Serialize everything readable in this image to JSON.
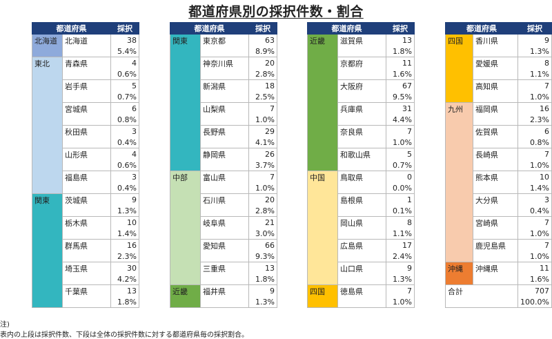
{
  "title": "都道府県別の採択件数・割合",
  "header": {
    "pref": "都道府県",
    "count": "採択"
  },
  "colors": {
    "北海道": "#8eaadb",
    "東北": "#bdd7ee",
    "関東": "#33b6bf",
    "中部": "#c5e0b4",
    "近畿": "#70ad47",
    "中国": "#ffe699",
    "四国": "#ffc000",
    "九州": "#f8cbad",
    "沖縄": "#ed7d31",
    "header": "#1f3f7a"
  },
  "columns": [
    {
      "groups": [
        {
          "region": "北海道",
          "color": "#8eaadb",
          "rows": [
            {
              "name": "北海道",
              "count": "38",
              "pct": "5.4%"
            }
          ]
        },
        {
          "region": "東北",
          "color": "#bdd7ee",
          "rows": [
            {
              "name": "青森県",
              "count": "4",
              "pct": "0.6%"
            },
            {
              "name": "岩手県",
              "count": "5",
              "pct": "0.7%"
            },
            {
              "name": "宮城県",
              "count": "6",
              "pct": "0.8%"
            },
            {
              "name": "秋田県",
              "count": "3",
              "pct": "0.4%"
            },
            {
              "name": "山形県",
              "count": "4",
              "pct": "0.6%"
            },
            {
              "name": "福島県",
              "count": "3",
              "pct": "0.4%"
            }
          ]
        },
        {
          "region": "関東",
          "color": "#33b6bf",
          "rows": [
            {
              "name": "茨城県",
              "count": "9",
              "pct": "1.3%"
            },
            {
              "name": "栃木県",
              "count": "10",
              "pct": "1.4%"
            },
            {
              "name": "群馬県",
              "count": "16",
              "pct": "2.3%"
            },
            {
              "name": "埼玉県",
              "count": "30",
              "pct": "4.2%"
            },
            {
              "name": "千葉県",
              "count": "13",
              "pct": "1.8%"
            }
          ]
        }
      ]
    },
    {
      "groups": [
        {
          "region": "関東",
          "color": "#33b6bf",
          "rows": [
            {
              "name": "東京都",
              "count": "63",
              "pct": "8.9%"
            },
            {
              "name": "神奈川県",
              "count": "20",
              "pct": "2.8%"
            },
            {
              "name": "新潟県",
              "count": "18",
              "pct": "2.5%"
            },
            {
              "name": "山梨県",
              "count": "7",
              "pct": "1.0%"
            },
            {
              "name": "長野県",
              "count": "29",
              "pct": "4.1%"
            },
            {
              "name": "静岡県",
              "count": "26",
              "pct": "3.7%"
            }
          ]
        },
        {
          "region": "中部",
          "color": "#c5e0b4",
          "rows": [
            {
              "name": "富山県",
              "count": "7",
              "pct": "1.0%"
            },
            {
              "name": "石川県",
              "count": "20",
              "pct": "2.8%"
            },
            {
              "name": "岐阜県",
              "count": "21",
              "pct": "3.0%"
            },
            {
              "name": "愛知県",
              "count": "66",
              "pct": "9.3%"
            },
            {
              "name": "三重県",
              "count": "13",
              "pct": "1.8%"
            }
          ]
        },
        {
          "region": "近畿",
          "color": "#70ad47",
          "rows": [
            {
              "name": "福井県",
              "count": "9",
              "pct": "1.3%"
            }
          ]
        }
      ]
    },
    {
      "groups": [
        {
          "region": "近畿",
          "color": "#70ad47",
          "rows": [
            {
              "name": "滋賀県",
              "count": "13",
              "pct": "1.8%"
            },
            {
              "name": "京都府",
              "count": "11",
              "pct": "1.6%"
            },
            {
              "name": "大阪府",
              "count": "67",
              "pct": "9.5%"
            },
            {
              "name": "兵庫県",
              "count": "31",
              "pct": "4.4%"
            },
            {
              "name": "奈良県",
              "count": "7",
              "pct": "1.0%"
            },
            {
              "name": "和歌山県",
              "count": "5",
              "pct": "0.7%"
            }
          ]
        },
        {
          "region": "中国",
          "color": "#ffe699",
          "rows": [
            {
              "name": "鳥取県",
              "count": "0",
              "pct": "0.0%"
            },
            {
              "name": "島根県",
              "count": "1",
              "pct": "0.1%"
            },
            {
              "name": "岡山県",
              "count": "8",
              "pct": "1.1%"
            },
            {
              "name": "広島県",
              "count": "17",
              "pct": "2.4%"
            },
            {
              "name": "山口県",
              "count": "9",
              "pct": "1.3%"
            }
          ]
        },
        {
          "region": "四国",
          "color": "#ffc000",
          "rows": [
            {
              "name": "徳島県",
              "count": "7",
              "pct": "1.0%"
            }
          ]
        }
      ]
    },
    {
      "groups": [
        {
          "region": "四国",
          "color": "#ffc000",
          "rows": [
            {
              "name": "香川県",
              "count": "9",
              "pct": "1.3%"
            },
            {
              "name": "愛媛県",
              "count": "8",
              "pct": "1.1%"
            },
            {
              "name": "高知県",
              "count": "7",
              "pct": "1.0%"
            }
          ]
        },
        {
          "region": "九州",
          "color": "#f8cbad",
          "rows": [
            {
              "name": "福岡県",
              "count": "16",
              "pct": "2.3%"
            },
            {
              "name": "佐賀県",
              "count": "6",
              "pct": "0.8%"
            },
            {
              "name": "長崎県",
              "count": "7",
              "pct": "1.0%"
            },
            {
              "name": "熊本県",
              "count": "10",
              "pct": "1.4%"
            },
            {
              "name": "大分県",
              "count": "3",
              "pct": "0.4%"
            },
            {
              "name": "宮崎県",
              "count": "7",
              "pct": "1.0%"
            },
            {
              "name": "鹿児島県",
              "count": "7",
              "pct": "1.0%"
            }
          ]
        },
        {
          "region": "沖縄",
          "color": "#ed7d31",
          "rows": [
            {
              "name": "沖縄県",
              "count": "11",
              "pct": "1.6%"
            }
          ]
        }
      ],
      "total": {
        "label": "合計",
        "count": "707",
        "pct": "100.0%"
      }
    }
  ],
  "notes": [
    "注)",
    "表内の上段は採択件数、下段は全体の採択件数に対する都道府県毎の採択割合。"
  ]
}
